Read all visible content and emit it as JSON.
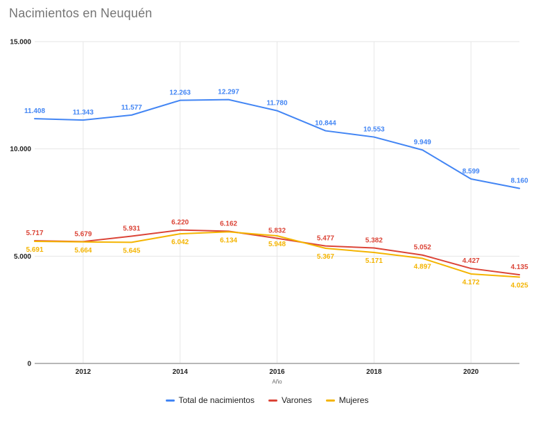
{
  "title": "Nacimientos en Neuquén",
  "colors": {
    "grid": "#e6e6e6",
    "axis_line": "#b7b7b7",
    "title_text": "#757575",
    "axis_text": "#222222",
    "blue": "#4285F4",
    "red": "#DB4437",
    "yellow": "#F4B400"
  },
  "chart_data": {
    "type": "line",
    "title": "Nacimientos en Neuquén",
    "xlabel": "Año",
    "ylabel": "",
    "x": [
      2011,
      2012,
      2013,
      2014,
      2015,
      2016,
      2017,
      2018,
      2019,
      2020,
      2021
    ],
    "x_axis": {
      "ticks": [
        2012,
        2014,
        2016,
        2018,
        2020
      ],
      "range": [
        2011,
        2021
      ]
    },
    "y_axis": {
      "ticks": [
        0,
        5000,
        10000,
        15000
      ],
      "tick_labels": [
        "0",
        "5.000",
        "10.000",
        "15.000"
      ],
      "range": [
        0,
        15000
      ]
    },
    "grid": true,
    "legend_position": "bottom",
    "series": [
      {
        "name": "Total de nacimientos",
        "color": "#4285F4",
        "label_position": "above",
        "values": [
          11408,
          11343,
          11577,
          12263,
          12297,
          11780,
          10844,
          10553,
          9949,
          8599,
          8160
        ],
        "labels": [
          "11.408",
          "11.343",
          "11.577",
          "12.263",
          "12.297",
          "11.780",
          "10.844",
          "10.553",
          "9.949",
          "8.599",
          "8.160"
        ]
      },
      {
        "name": "Varones",
        "color": "#DB4437",
        "label_position": "above",
        "values": [
          5717,
          5679,
          5931,
          6220,
          6162,
          5832,
          5477,
          5382,
          5052,
          4427,
          4135
        ],
        "labels": [
          "5.717",
          "5.679",
          "5.931",
          "6.220",
          "6.162",
          "5.832",
          "5.477",
          "5.382",
          "5.052",
          "4.427",
          "4.135"
        ]
      },
      {
        "name": "Mujeres",
        "color": "#F4B400",
        "label_position": "below",
        "values": [
          5691,
          5664,
          5645,
          6042,
          6134,
          5948,
          5367,
          5171,
          4897,
          4172,
          4025
        ],
        "labels": [
          "5.691",
          "5.664",
          "5.645",
          "6.042",
          "6.134",
          "5.948",
          "5.367",
          "5.171",
          "4.897",
          "4.172",
          "4.025"
        ]
      }
    ]
  }
}
